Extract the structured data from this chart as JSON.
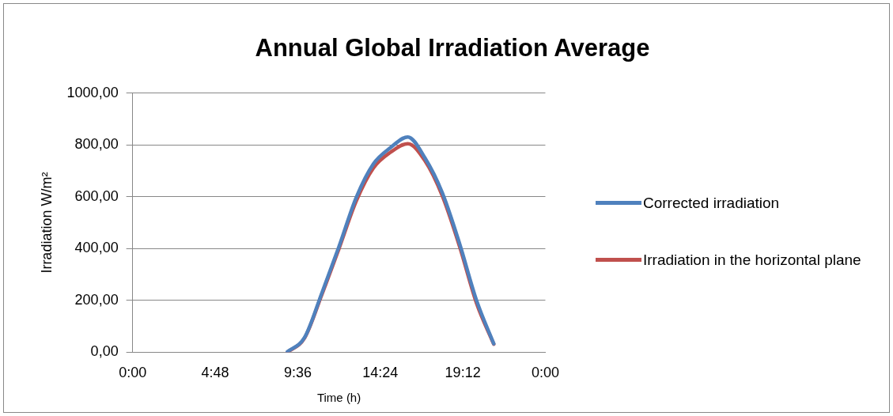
{
  "chart_data": {
    "type": "line",
    "title": "Annual Global Irradiation Average",
    "xlabel": "Time (h)",
    "ylabel": "Irradiation W/m²",
    "x": [
      9,
      10,
      11,
      12,
      13,
      14,
      15,
      16,
      17,
      18,
      19,
      20,
      21
    ],
    "series": [
      {
        "name": "Corrected irradiation",
        "color": "#4f81bd",
        "values": [
          2,
          57,
          228,
          408,
          597,
          727,
          790,
          831,
          750,
          617,
          422,
          200,
          33
        ]
      },
      {
        "name": "Irradiation in the horizontal plane",
        "color": "#c0504d",
        "values": [
          0,
          55,
          222,
          400,
          583,
          711,
          772,
          805,
          739,
          605,
          411,
          189,
          31
        ]
      }
    ],
    "xlim": [
      0,
      24
    ],
    "xticks": [
      {
        "value": 0,
        "label": "0:00"
      },
      {
        "value": 4.8,
        "label": "4:48"
      },
      {
        "value": 9.6,
        "label": "9:36"
      },
      {
        "value": 14.4,
        "label": "14:24"
      },
      {
        "value": 19.2,
        "label": "19:12"
      },
      {
        "value": 24,
        "label": "0:00"
      }
    ],
    "ylim": [
      0,
      1000
    ],
    "yticks": [
      {
        "value": 0,
        "label": "0,00"
      },
      {
        "value": 200,
        "label": "200,00"
      },
      {
        "value": 400,
        "label": "400,00"
      },
      {
        "value": 600,
        "label": "600,00"
      },
      {
        "value": 800,
        "label": "800,00"
      },
      {
        "value": 1000,
        "label": "1000,00"
      }
    ],
    "grid": "y",
    "legend": "right",
    "marker": "none",
    "line_style": "solid"
  }
}
